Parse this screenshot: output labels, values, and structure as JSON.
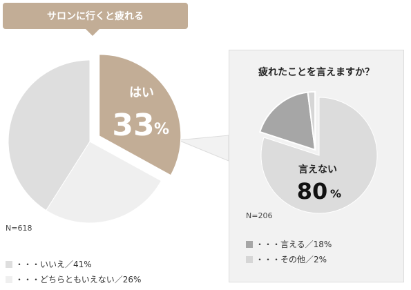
{
  "title": "サロンに行くと疲れる",
  "main_n": "N=618",
  "main_highlight": {
    "label": "はい",
    "value": "33",
    "unit": "%"
  },
  "main_legend": [
    {
      "text": "・・・いいえ／41%",
      "color": "#dedede"
    },
    {
      "text": "・・・どちらともいえない／26%",
      "color": "#efefef"
    }
  ],
  "sub_title": "疲れたことを言えますか？",
  "sub_n": "N=206",
  "sub_highlight": {
    "label": "言えない",
    "value": "80",
    "unit": "%"
  },
  "sub_legend": [
    {
      "text": "・・・言える／18%",
      "color": "#a6a6a6"
    },
    {
      "text": "・・・その他／2%",
      "color": "#d6d6d6"
    }
  ],
  "chart_data": [
    {
      "type": "pie",
      "title": "サロンに行くと疲れる",
      "n": "N=618",
      "categories": [
        "はい",
        "いいえ",
        "どちらともいえない"
      ],
      "values": [
        33,
        41,
        26
      ],
      "colors": [
        "#c2ad96",
        "#dedede",
        "#efefef"
      ],
      "unit": "%"
    },
    {
      "type": "pie",
      "title": "疲れたことを言えますか？",
      "n": "N=206",
      "categories": [
        "言えない",
        "言える",
        "その他"
      ],
      "values": [
        80,
        18,
        2
      ],
      "colors": [
        "#dcdcdc",
        "#a6a6a6",
        "#d6d6d6"
      ],
      "unit": "%"
    }
  ]
}
